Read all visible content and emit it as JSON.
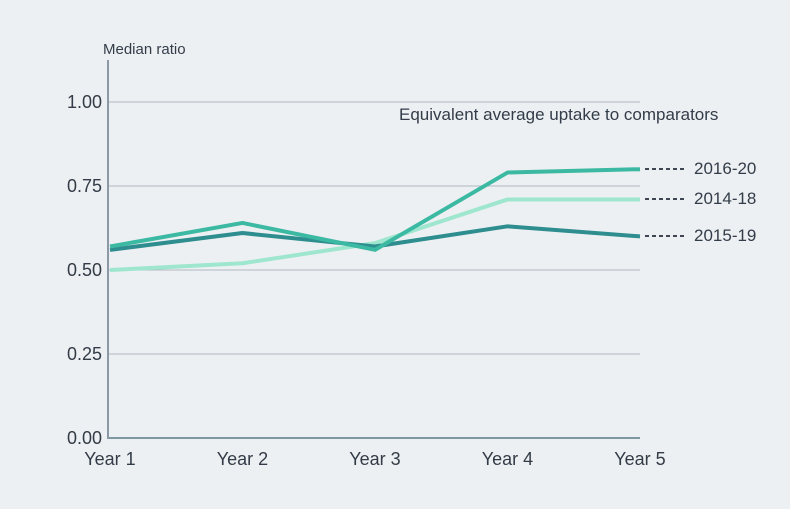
{
  "chart_data": {
    "type": "line",
    "title": "",
    "ylabel": "Median ratio",
    "xlabel": "",
    "annotation": "Equivalent average uptake to comparators",
    "categories": [
      "Year 1",
      "Year 2",
      "Year 3",
      "Year 4",
      "Year 5"
    ],
    "y_ticks": [
      "1.00",
      "0.75",
      "0.50",
      "0.25",
      "0.00"
    ],
    "ylim": [
      0,
      1.05
    ],
    "grid": "horizontal gridlines every 0.25",
    "legend_position": "right of line ends, linked with dashes",
    "series": [
      {
        "name": "2016-20",
        "color": "#3cb9a2",
        "values": [
          0.57,
          0.64,
          0.56,
          0.79,
          0.8
        ]
      },
      {
        "name": "2014-18",
        "color": "#9fe6cf",
        "values": [
          0.5,
          0.52,
          0.58,
          0.71,
          0.71
        ]
      },
      {
        "name": "2015-19",
        "color": "#2e8d8e",
        "values": [
          0.56,
          0.61,
          0.57,
          0.63,
          0.6
        ]
      }
    ],
    "colors": {
      "background": "#edf0f2",
      "text": "#333c49",
      "gridline": "#aeb8c2",
      "y_axis": "#8b99a7",
      "x_axis": "#7e97a0",
      "legend_dash": "#3e4651"
    }
  }
}
